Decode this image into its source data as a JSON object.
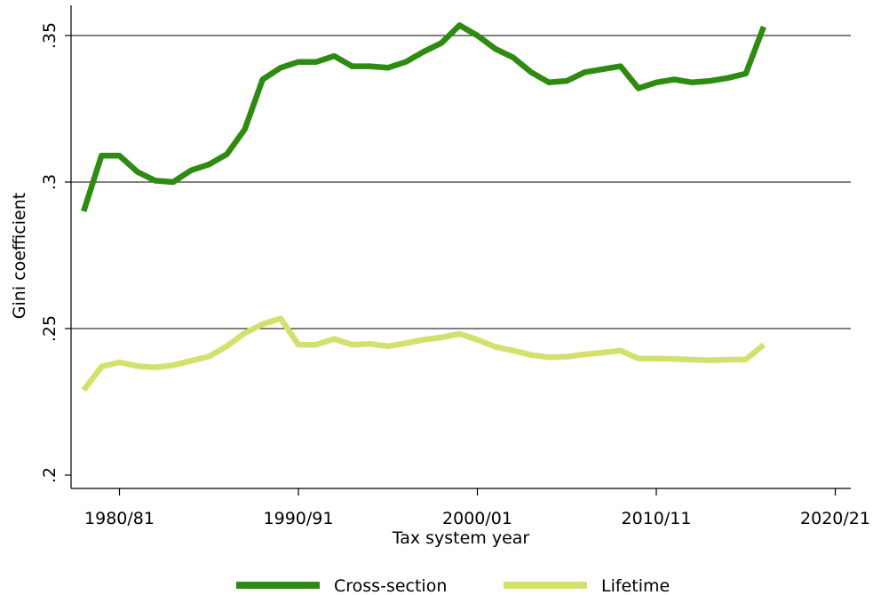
{
  "chart_data": {
    "type": "line",
    "xlabel": "Tax system year",
    "ylabel": "Gini coefficient",
    "xlim": [
      1977.5,
      2021
    ],
    "ylim": [
      0.2,
      0.36
    ],
    "grid": "horizontal",
    "legend_position": "bottom",
    "x_ticks": [
      {
        "value": 1980,
        "label": "1980/81"
      },
      {
        "value": 1990,
        "label": "1990/91"
      },
      {
        "value": 2000,
        "label": "2000/01"
      },
      {
        "value": 2010,
        "label": "2010/11"
      },
      {
        "value": 2020,
        "label": "2020/21"
      }
    ],
    "y_ticks": [
      {
        "value": 0.2,
        "label": ".2"
      },
      {
        "value": 0.25,
        "label": ".25"
      },
      {
        "value": 0.3,
        "label": ".3"
      },
      {
        "value": 0.35,
        "label": ".35"
      }
    ],
    "x": [
      1978,
      1979,
      1980,
      1981,
      1982,
      1983,
      1984,
      1985,
      1986,
      1987,
      1988,
      1989,
      1990,
      1991,
      1992,
      1993,
      1994,
      1995,
      1996,
      1997,
      1998,
      1999,
      2000,
      2001,
      2002,
      2003,
      2004,
      2005,
      2006,
      2007,
      2008,
      2009,
      2010,
      2011,
      2012,
      2013,
      2014,
      2015,
      2016
    ],
    "series": [
      {
        "name": "Cross-section",
        "color": "#2e8b12",
        "values": [
          0.29,
          0.309,
          0.309,
          0.3035,
          0.3005,
          0.3,
          0.304,
          0.306,
          0.3095,
          0.318,
          0.335,
          0.339,
          0.341,
          0.341,
          0.343,
          0.3395,
          0.3395,
          0.339,
          0.341,
          0.3445,
          0.3475,
          0.3535,
          0.35,
          0.3455,
          0.3425,
          0.3375,
          0.334,
          0.3345,
          0.3375,
          0.3385,
          0.3395,
          0.332,
          0.334,
          0.335,
          0.334,
          0.3345,
          0.3355,
          0.337,
          0.353
        ]
      },
      {
        "name": "Lifetime",
        "color": "#d4e06e",
        "values": [
          0.229,
          0.237,
          0.2385,
          0.2372,
          0.2368,
          0.2375,
          0.239,
          0.2405,
          0.244,
          0.2485,
          0.2515,
          0.2535,
          0.2445,
          0.2445,
          0.2465,
          0.2445,
          0.2448,
          0.244,
          0.245,
          0.2462,
          0.247,
          0.2482,
          0.2462,
          0.2438,
          0.2425,
          0.241,
          0.2402,
          0.2404,
          0.2412,
          0.2418,
          0.2425,
          0.2398,
          0.2398,
          0.2396,
          0.2394,
          0.2392,
          0.2394,
          0.2395,
          0.2445
        ]
      }
    ]
  }
}
